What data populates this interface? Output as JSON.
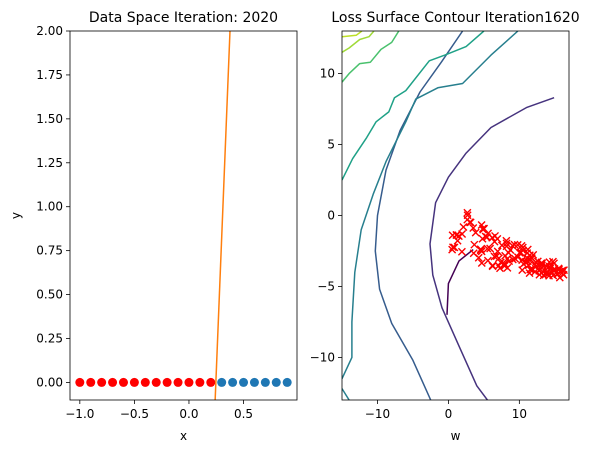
{
  "chart_data": [
    {
      "type": "scatter",
      "title": "Data Space Iteration: 2020",
      "xlabel": "x",
      "ylabel": "y",
      "xlim": [
        -1.09,
        0.99
      ],
      "ylim": [
        -0.1,
        2.0
      ],
      "xticks": [
        -1.0,
        -0.5,
        0.0,
        0.5
      ],
      "xtick_labels": [
        "−1.0",
        "−0.5",
        "0.0",
        "0.5"
      ],
      "yticks": [
        0.0,
        0.25,
        0.5,
        0.75,
        1.0,
        1.25,
        1.5,
        1.75,
        2.0
      ],
      "ytick_labels": [
        "0.00",
        "0.25",
        "0.50",
        "0.75",
        "1.00",
        "1.25",
        "1.50",
        "1.75",
        "2.00"
      ],
      "grid": false,
      "series": [
        {
          "color": "#ff0000",
          "x": [
            -1.0,
            -0.9,
            -0.8,
            -0.7,
            -0.6,
            -0.5,
            -0.4,
            -0.3,
            -0.2,
            -0.1,
            0.0,
            0.1,
            0.2
          ],
          "y": [
            0,
            0,
            0,
            0,
            0,
            0,
            0,
            0,
            0,
            0,
            0,
            0,
            0
          ]
        },
        {
          "color": "#1f77b4",
          "x": [
            0.3,
            0.4,
            0.5,
            0.6,
            0.7,
            0.8,
            0.9
          ],
          "y": [
            0,
            0,
            0,
            0,
            0,
            0,
            0
          ]
        }
      ],
      "line": {
        "color": "#ff7f0e",
        "x": [
          0.24,
          0.376
        ],
        "y": [
          -0.1,
          2.0
        ]
      }
    },
    {
      "type": "contour",
      "title": "Loss Surface Contour Iteration1620",
      "xlabel": "w",
      "ylabel": "",
      "xlim": [
        -15,
        17
      ],
      "ylim": [
        -13,
        13
      ],
      "xticks": [
        -10,
        0,
        10
      ],
      "xtick_labels": [
        "−10",
        "0",
        "10"
      ],
      "yticks": [
        -10,
        -5,
        0,
        5,
        10
      ],
      "ytick_labels": [
        "−10",
        "−5",
        "0",
        "5",
        "10"
      ],
      "grid": false,
      "contours": [
        {
          "color": "#440154",
          "points": [
            [
              -0.2,
              -7
            ],
            [
              0,
              -4.8
            ],
            [
              1.5,
              -3.2
            ],
            [
              3.5,
              -2.4
            ]
          ]
        },
        {
          "color": "#46337e",
          "points": [
            [
              14.9,
              8.3
            ],
            [
              11,
              7.6
            ],
            [
              6,
              6.2
            ],
            [
              2.5,
              4.4
            ],
            [
              0,
              2.7
            ],
            [
              -1.8,
              0.9
            ],
            [
              -2.6,
              -2
            ],
            [
              -2.2,
              -4.2
            ],
            [
              -0.9,
              -6.5
            ],
            [
              1.5,
              -9.2
            ],
            [
              4,
              -12
            ],
            [
              5.5,
              -13
            ]
          ]
        },
        {
          "color": "#365c8d",
          "points": [
            [
              2,
              13
            ],
            [
              -1,
              10.8
            ],
            [
              -4,
              8.7
            ],
            [
              -6.8,
              6
            ],
            [
              -8.8,
              3.2
            ],
            [
              -10,
              0
            ],
            [
              -10.3,
              -2.5
            ],
            [
              -9.7,
              -5.2
            ],
            [
              -8,
              -7.6
            ],
            [
              -5,
              -10.2
            ],
            [
              -2.5,
              -13
            ]
          ]
        },
        {
          "color": "#277f8e",
          "points": [
            [
              9.8,
              13
            ],
            [
              6,
              11.3
            ],
            [
              2,
              9.3
            ],
            [
              -1.5,
              9
            ],
            [
              -4.6,
              8.2
            ],
            [
              -6,
              6.6
            ],
            [
              -8.8,
              3.8
            ],
            [
              -10.6,
              1.5
            ],
            [
              -12.3,
              -1
            ],
            [
              -13.2,
              -4
            ],
            [
              -13.6,
              -7.5
            ],
            [
              -13.6,
              -10
            ],
            [
              -15,
              -11.5
            ]
          ]
        },
        {
          "color": "#277f8e",
          "points": [
            [
              -15,
              -12.2
            ],
            [
              -14,
              -13
            ]
          ]
        },
        {
          "color": "#1fa187",
          "points": [
            [
              5,
              13
            ],
            [
              2.5,
              11.9
            ],
            [
              -0.5,
              11.3
            ],
            [
              -2.7,
              10.9
            ],
            [
              -6,
              8.8
            ],
            [
              -7.6,
              8.3
            ],
            [
              -8.4,
              7.3
            ],
            [
              -10.2,
              6.6
            ],
            [
              -11.5,
              5.5
            ],
            [
              -13.5,
              4
            ],
            [
              -15,
              2.5
            ]
          ]
        },
        {
          "color": "#4ac16d",
          "points": [
            [
              -7,
              13
            ],
            [
              -8,
              12.2
            ],
            [
              -9.5,
              11.7
            ],
            [
              -11,
              10.8
            ],
            [
              -12.5,
              10.7
            ],
            [
              -14,
              10
            ],
            [
              -15,
              9.4
            ]
          ]
        },
        {
          "color": "#a0da39",
          "points": [
            [
              -10.5,
              13
            ],
            [
              -11.2,
              12.6
            ],
            [
              -12.5,
              12.4
            ],
            [
              -14,
              11.8
            ],
            [
              -15,
              11.5
            ]
          ]
        },
        {
          "color": "#bddf26",
          "points": [
            [
              -15,
              12.6
            ],
            [
              -13,
              12.7
            ],
            [
              -12.2,
              13
            ]
          ]
        }
      ],
      "trajectory": {
        "color": "#ff0000",
        "start": [
          1.0,
          -1.4
        ],
        "end": [
          16.2,
          -4.1
        ],
        "count": 130
      }
    }
  ]
}
